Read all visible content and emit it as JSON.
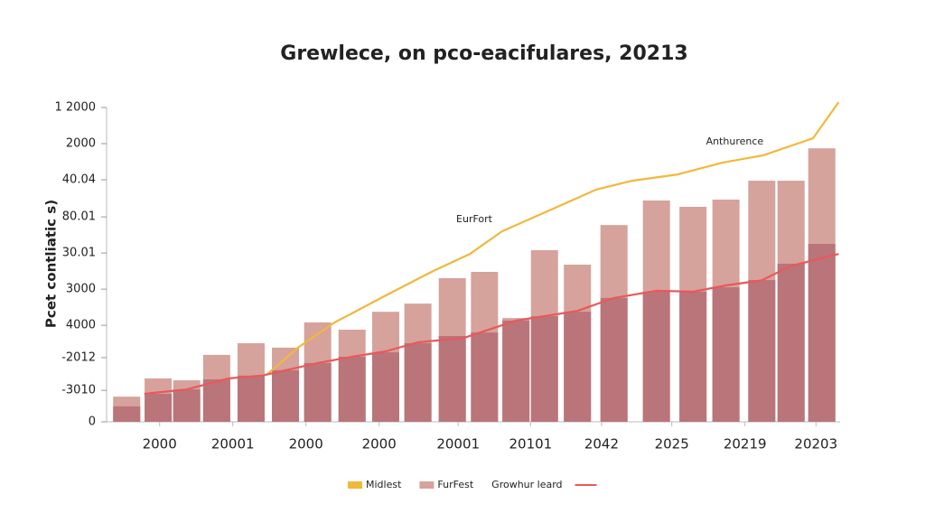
{
  "chart_data": {
    "type": "bar",
    "title": "Grewlece, on pco-eacifulares, 20213",
    "y_label": "Pcet contliatic s)",
    "annotations": [
      {
        "text": "Anthurence",
        "x": 85.6,
        "y": 89.1
      },
      {
        "text": "EurFort",
        "x": 50.0,
        "y": 64.4
      }
    ],
    "xlim": [
      0,
      100
    ],
    "xticks": [
      {
        "value": 7.0,
        "label": "2000"
      },
      {
        "value": 17.0,
        "label": "20001"
      },
      {
        "value": 27.0,
        "label": "2000"
      },
      {
        "value": 37.0,
        "label": "2000"
      },
      {
        "value": 47.8,
        "label": "20001"
      },
      {
        "value": 57.7,
        "label": "20101"
      },
      {
        "value": 67.4,
        "label": "2042"
      },
      {
        "value": 77.0,
        "label": "2025"
      },
      {
        "value": 87.0,
        "label": "20219"
      },
      {
        "value": 96.7,
        "label": "20203"
      }
    ],
    "ylim": [
      0,
      100
    ],
    "yticks": [
      0,
      {
        "value": 10,
        "label": "-3010"
      },
      {
        "value": 20.4,
        "label": "-2012"
      },
      {
        "value": 30.7,
        "label": "4000"
      },
      {
        "value": 42.2,
        "label": "3000"
      },
      {
        "value": 53.7,
        "label": "30.01"
      },
      {
        "value": 65.2,
        "label": "80.01"
      },
      {
        "value": 77,
        "label": "40.04"
      },
      {
        "value": 88.5,
        "label": "2000"
      },
      {
        "value": 100,
        "label": "1 2000"
      }
    ],
    "series": [
      {
        "name": "Midlest",
        "type": "line",
        "legend_marker": "rect",
        "color": "#f0b93a",
        "x": [
          21.6,
          25.9,
          30.9,
          33.3,
          37.9,
          44.4,
          49.4,
          53.8,
          60.5,
          66.7,
          71.6,
          77.8,
          84.0,
          89.5,
          96.3,
          99.8
        ],
        "values": [
          14.9,
          23.6,
          31.6,
          34.5,
          40.2,
          48,
          53.4,
          60.6,
          67.5,
          73.9,
          76.7,
          78.7,
          82.5,
          84.8,
          90.2,
          101.7
        ]
      },
      {
        "name": "FurFest",
        "type": "bar",
        "legend_marker": "rect",
        "color": "#d6a29c",
        "x": [
          2.5,
          6.8,
          10.7,
          14.8,
          19.5,
          24.2,
          28.6,
          33.3,
          37.9,
          42.3,
          47.0,
          51.4,
          55.7,
          59.6,
          64.1,
          69.1,
          74.9,
          79.9,
          84.4,
          89.3,
          93.3,
          97.5
        ],
        "values": [
          8,
          13.8,
          13.2,
          21.3,
          25,
          23.6,
          31.6,
          29.3,
          35,
          37.6,
          45.7,
          47.7,
          33,
          54.6,
          50,
          62.6,
          70.4,
          68.4,
          70.7,
          76.7,
          76.7,
          87
        ]
      },
      {
        "type": "bar",
        "color": "#b9757a",
        "x": [
          2.5,
          6.8,
          10.7,
          14.8,
          19.5,
          24.2,
          28.6,
          33.3,
          37.9,
          42.3,
          47.0,
          51.4,
          55.7,
          59.6,
          64.1,
          69.1,
          74.9,
          79.9,
          84.4,
          89.3,
          93.3,
          97.5
        ],
        "values": [
          4.9,
          8.9,
          10.3,
          13.5,
          14.7,
          16.4,
          18.7,
          20.7,
          22.1,
          25,
          27.3,
          28.4,
          32.2,
          33.6,
          35,
          39.4,
          41.4,
          41.4,
          42.8,
          45.1,
          50.3,
          56.6
        ]
      },
      {
        "name": "Growhur leard",
        "type": "line",
        "legend_marker": "line",
        "color": "#e8595a",
        "x": [
          4.9,
          10.7,
          16.4,
          21.0,
          28.6,
          33.3,
          37.9,
          42.3,
          48.6,
          55.7,
          64.1,
          69.1,
          74.9,
          79.9,
          84.4,
          89.3,
          93.3,
          99.8
        ],
        "values": [
          8.9,
          10.3,
          13.8,
          14.7,
          18.7,
          20.7,
          22.4,
          25.3,
          26.7,
          32.2,
          35.3,
          39.4,
          41.7,
          41.4,
          43.4,
          45,
          49.6,
          53.4
        ]
      }
    ]
  }
}
